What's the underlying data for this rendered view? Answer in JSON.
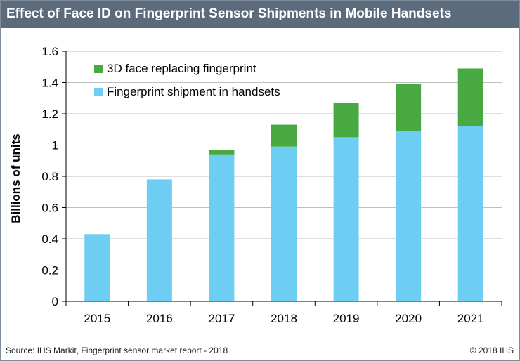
{
  "header": {
    "title": "Effect of Face ID on Fingerprint Sensor Shipments in Mobile Handsets"
  },
  "footer": {
    "source": "Source: IHS Markit, Fingerprint sensor market report - 2018",
    "copyright": "© 2018 IHS"
  },
  "colors": {
    "header_bg": "#5b6b7c",
    "fingerprint": "#6dcdf2",
    "face_id": "#48a942",
    "grid": "#bfbfbf"
  },
  "chart_data": {
    "type": "bar",
    "stacked": true,
    "title": "Effect of Face ID on Fingerprint Sensor Shipments in Mobile Handsets",
    "xlabel": "",
    "ylabel": "Billions of units",
    "categories": [
      "2015",
      "2016",
      "2017",
      "2018",
      "2019",
      "2020",
      "2021"
    ],
    "series": [
      {
        "name": "Fingerprint shipment in handsets",
        "color": "#6dcdf2",
        "values": [
          0.43,
          0.78,
          0.94,
          0.99,
          1.05,
          1.09,
          1.12
        ]
      },
      {
        "name": "3D face replacing fingerprint",
        "color": "#48a942",
        "values": [
          0.0,
          0.0,
          0.03,
          0.14,
          0.22,
          0.3,
          0.37
        ]
      }
    ],
    "ylim": [
      0,
      1.6
    ],
    "yticks": [
      "0",
      "0.2",
      "0.4",
      "0.6",
      "0.8",
      "1",
      "1.2",
      "1.4",
      "1.6"
    ],
    "grid": true,
    "legend": {
      "position": "top-left",
      "entries": [
        "3D face replacing fingerprint",
        "Fingerprint shipment in handsets"
      ]
    }
  }
}
